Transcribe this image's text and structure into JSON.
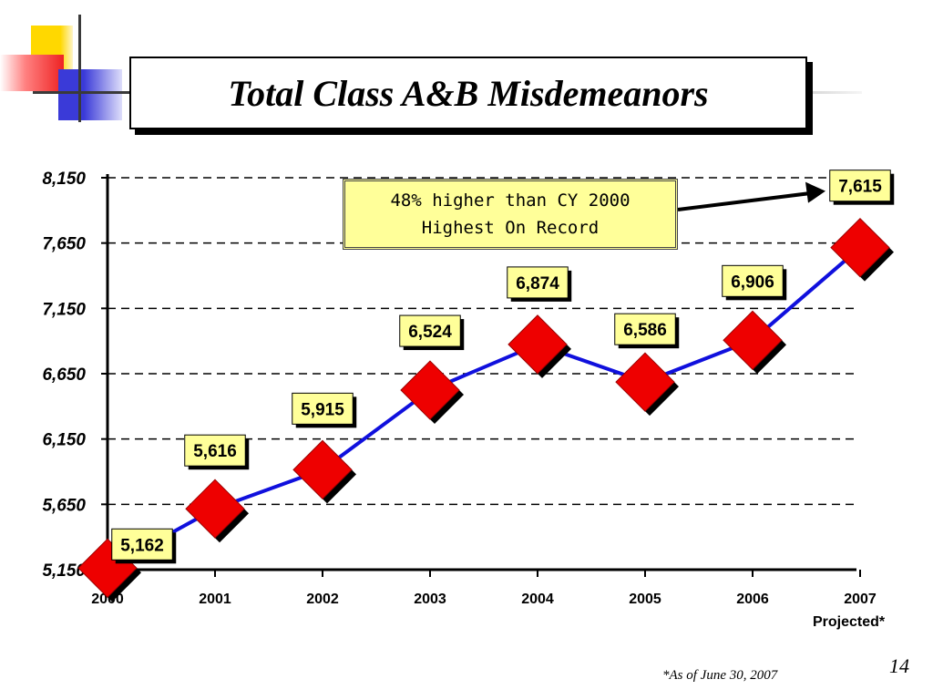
{
  "title": "Total Class A&B Misdemeanors",
  "callout": {
    "line1": "48% higher than CY 2000",
    "line2": "Highest On Record"
  },
  "projected_note": "Projected*",
  "footnote": "*As of June 30, 2007",
  "page_number": "14",
  "colors": {
    "line": "#1010dd",
    "marker": "#ee0000",
    "label_bg": "#ffff99",
    "callout_bg": "#ffff99"
  },
  "chart_data": {
    "type": "line",
    "categories": [
      "2000",
      "2001",
      "2002",
      "2003",
      "2004",
      "2005",
      "2006",
      "2007"
    ],
    "values": [
      5162,
      5616,
      5915,
      6524,
      6874,
      6586,
      6906,
      7615
    ],
    "data_labels": [
      "5,162",
      "5,616",
      "5,915",
      "6,524",
      "6,874",
      "6,586",
      "6,906",
      "7,615"
    ],
    "ylim": [
      5150,
      8150
    ],
    "yticks": [
      5150,
      5650,
      6150,
      6650,
      7150,
      7650,
      8150
    ],
    "ytick_labels": [
      "5,150",
      "5,650",
      "6,150",
      "6,650",
      "7,150",
      "7,650",
      "8,150"
    ],
    "grid": "horizontal dashed",
    "legend": "none",
    "marker": "diamond"
  }
}
